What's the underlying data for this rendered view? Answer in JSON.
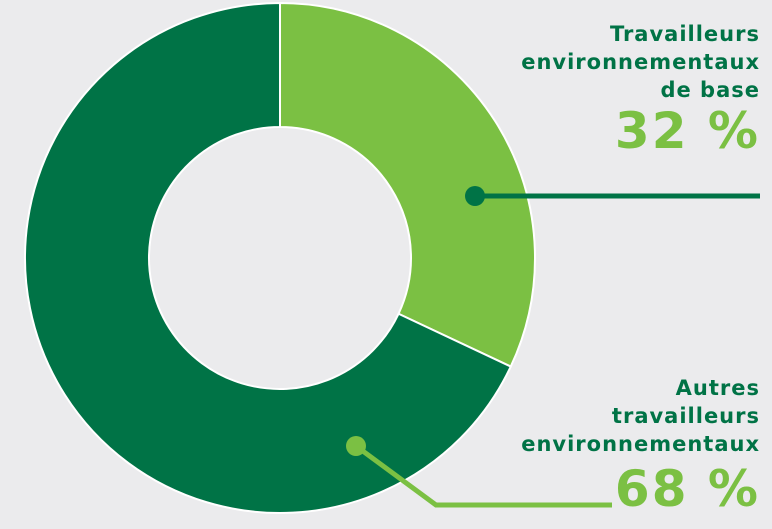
{
  "chart_data": {
    "type": "pie",
    "donut": true,
    "unit": "%",
    "slices": [
      {
        "label": "Travailleurs\nenvironnementaux\nde base",
        "value": 32,
        "value_label": "32 %",
        "color": "#7bc043"
      },
      {
        "label": "Autres\ntravailleurs\nenvironnementaux",
        "value": 68,
        "value_label": "68 %",
        "color": "#007346"
      }
    ],
    "label_colors": {
      "name": "#007346",
      "value": "#7bc043"
    },
    "background": "#ebebed",
    "legend": "right"
  }
}
